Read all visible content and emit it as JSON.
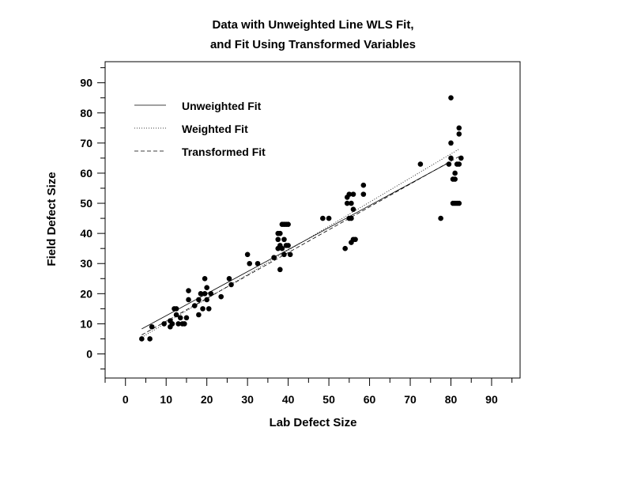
{
  "chart_data": {
    "type": "scatter",
    "title": [
      "Data with Unweighted Line WLS Fit,",
      "and Fit Using Transformed Variables"
    ],
    "xlabel": "Lab Defect Size",
    "ylabel": "Field Defect Size",
    "xlim": [
      -5,
      97
    ],
    "ylim": [
      -8,
      97
    ],
    "xticks": [
      0,
      10,
      20,
      30,
      40,
      50,
      60,
      70,
      80,
      90
    ],
    "yticks": [
      0,
      10,
      20,
      30,
      40,
      50,
      60,
      70,
      80,
      90
    ],
    "grid": false,
    "legend_position": "top-left",
    "points": [
      [
        4,
        5
      ],
      [
        6,
        5
      ],
      [
        6.5,
        9
      ],
      [
        9.5,
        10
      ],
      [
        11,
        11
      ],
      [
        11,
        9
      ],
      [
        11.5,
        10
      ],
      [
        12,
        15
      ],
      [
        12.5,
        13
      ],
      [
        12.5,
        15
      ],
      [
        13,
        10
      ],
      [
        13.5,
        12
      ],
      [
        14,
        10
      ],
      [
        14.5,
        10
      ],
      [
        15,
        12
      ],
      [
        15.5,
        18
      ],
      [
        15.5,
        21
      ],
      [
        17,
        16
      ],
      [
        18,
        13
      ],
      [
        18,
        18
      ],
      [
        18.5,
        20
      ],
      [
        19,
        15
      ],
      [
        19.5,
        20
      ],
      [
        19.5,
        25
      ],
      [
        20,
        22
      ],
      [
        20,
        18
      ],
      [
        20.5,
        15
      ],
      [
        21,
        20
      ],
      [
        23.5,
        19
      ],
      [
        25.5,
        25
      ],
      [
        26,
        23
      ],
      [
        30,
        33
      ],
      [
        30.5,
        30
      ],
      [
        32.5,
        30
      ],
      [
        36.5,
        32
      ],
      [
        37.5,
        35
      ],
      [
        37.5,
        38
      ],
      [
        37.5,
        40
      ],
      [
        38,
        36
      ],
      [
        38,
        40
      ],
      [
        38,
        28
      ],
      [
        38.5,
        43
      ],
      [
        38.5,
        35
      ],
      [
        39,
        38
      ],
      [
        39,
        43
      ],
      [
        39,
        33
      ],
      [
        39.5,
        36
      ],
      [
        39.5,
        43
      ],
      [
        40,
        43
      ],
      [
        40,
        36
      ],
      [
        40.5,
        33
      ],
      [
        48.5,
        45
      ],
      [
        50,
        45
      ],
      [
        54,
        35
      ],
      [
        54.5,
        50
      ],
      [
        54.5,
        52
      ],
      [
        55,
        53
      ],
      [
        55,
        45
      ],
      [
        55.5,
        50
      ],
      [
        55.5,
        45
      ],
      [
        55.5,
        37
      ],
      [
        56,
        48
      ],
      [
        56,
        53
      ],
      [
        56,
        38
      ],
      [
        56.5,
        38
      ],
      [
        58.5,
        56
      ],
      [
        58.5,
        53
      ],
      [
        72.5,
        63
      ],
      [
        77.5,
        45
      ],
      [
        79.5,
        63
      ],
      [
        80,
        85
      ],
      [
        80,
        70
      ],
      [
        80,
        65
      ],
      [
        80.5,
        58
      ],
      [
        80.5,
        50
      ],
      [
        81,
        60
      ],
      [
        81,
        58
      ],
      [
        81,
        50
      ],
      [
        81.5,
        63
      ],
      [
        81.5,
        50
      ],
      [
        82,
        73
      ],
      [
        82,
        63
      ],
      [
        82,
        75
      ],
      [
        82,
        50
      ],
      [
        82.5,
        65
      ]
    ],
    "series": [
      {
        "name": "Unweighted Fit",
        "style": "solid",
        "x": [
          4,
          79.5
        ],
        "y": [
          8.3,
          63.5
        ]
      },
      {
        "name": "Weighted Fit",
        "style": "dotted",
        "x": [
          4,
          82
        ],
        "y": [
          5.5,
          68
        ]
      },
      {
        "name": "Transformed Fit",
        "style": "dashed",
        "x": [
          4,
          82
        ],
        "y": [
          6.3,
          65.5
        ]
      }
    ]
  }
}
